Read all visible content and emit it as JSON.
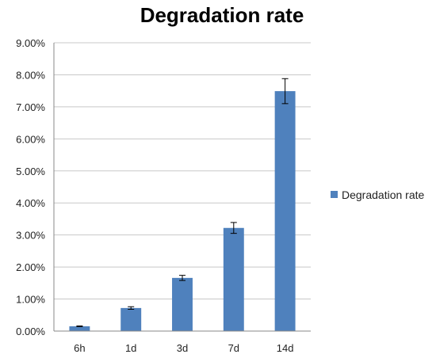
{
  "chart_data": {
    "type": "bar",
    "title": "Degradation rate",
    "xlabel": "",
    "ylabel": "",
    "categories": [
      "6h",
      "1d",
      "3d",
      "7d",
      "14d"
    ],
    "series": [
      {
        "name": "Degradation rate",
        "values": [
          0.0015,
          0.0072,
          0.0166,
          0.0322,
          0.0749
        ],
        "errors": [
          0.0001,
          0.0004,
          0.0008,
          0.0017,
          0.0039
        ]
      }
    ],
    "ylim": [
      0,
      0.09
    ],
    "yticks": [
      0,
      0.01,
      0.02,
      0.03,
      0.04,
      0.05,
      0.06,
      0.07,
      0.08,
      0.09
    ],
    "ytick_labels": [
      "0.00%",
      "1.00%",
      "2.00%",
      "3.00%",
      "4.00%",
      "5.00%",
      "6.00%",
      "7.00%",
      "8.00%",
      "9.00%"
    ],
    "grid": true,
    "legend_position": "right",
    "colors": {
      "bar": "#4f81bd",
      "grid": "#c8c8c8",
      "axis": "#888888",
      "error": "#000000"
    }
  }
}
